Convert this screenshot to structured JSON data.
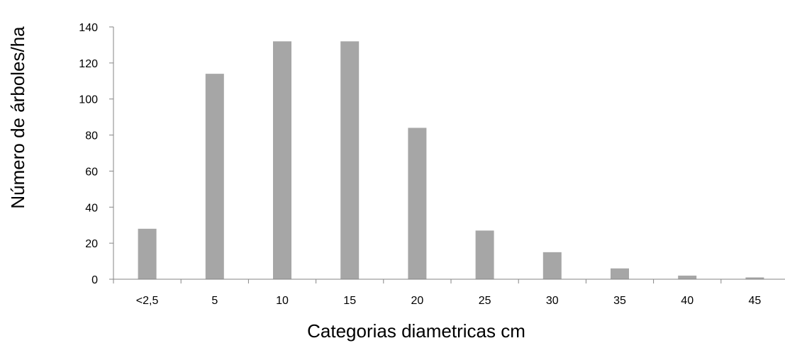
{
  "chart_data": {
    "type": "bar",
    "title": "",
    "xlabel": "Categorias diametricas cm",
    "ylabel": "Número de árboles/ha",
    "categories": [
      "<2,5",
      "5",
      "10",
      "15",
      "20",
      "25",
      "30",
      "35",
      "40",
      "45"
    ],
    "values": [
      28,
      114,
      132,
      132,
      84,
      27,
      15,
      6,
      2,
      1
    ],
    "ylim": [
      0,
      140
    ],
    "yticks": [
      0,
      20,
      40,
      60,
      80,
      100,
      120,
      140
    ],
    "grid": false,
    "legend": "none",
    "colors": {
      "bar": "#a6a6a6",
      "axis": "#868686",
      "text": "#000000"
    }
  }
}
